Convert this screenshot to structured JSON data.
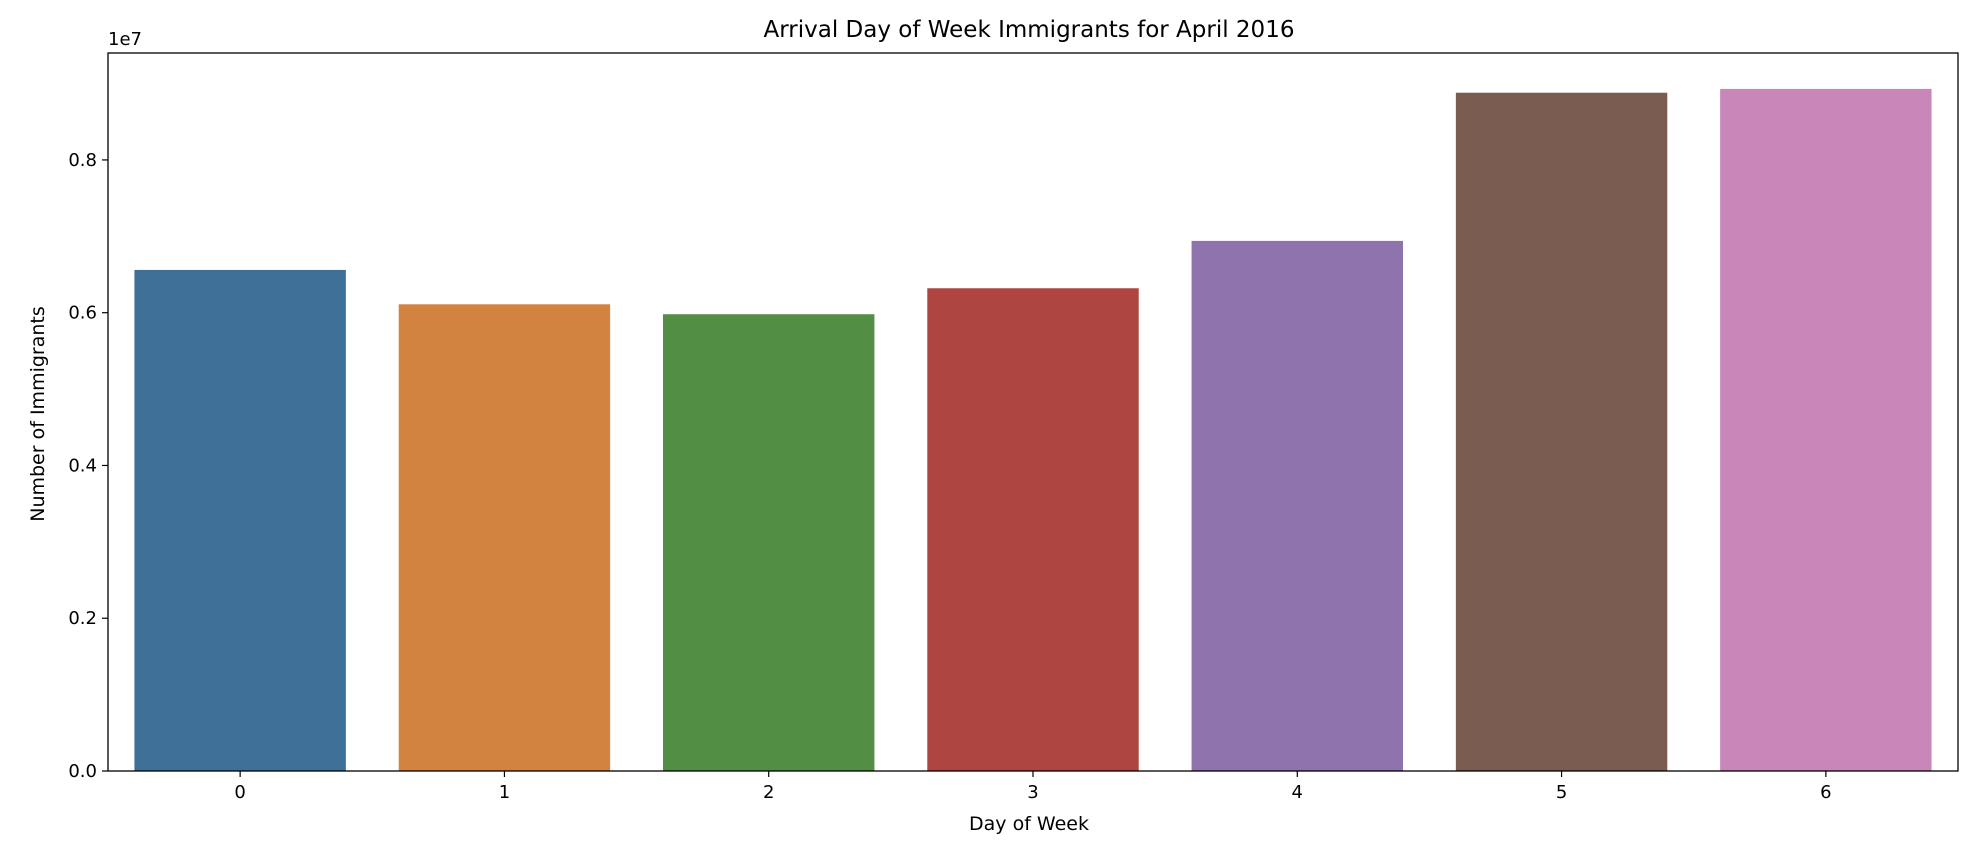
{
  "chart_data": {
    "type": "bar",
    "title": "Arrival Day of Week Immigrants for April 2016",
    "xlabel": "Day of Week",
    "ylabel": "Number of Immigrants",
    "y_offset_label": "1e7",
    "y_scale": 10000000,
    "categories": [
      "0",
      "1",
      "2",
      "3",
      "4",
      "5",
      "6"
    ],
    "values": [
      6560000,
      6110000,
      5980000,
      6320000,
      6940000,
      8880000,
      8930000
    ],
    "colors": [
      "#3f7098",
      "#d28340",
      "#528f44",
      "#ae4541",
      "#8e73ad",
      "#7a5c51",
      "#c986b9"
    ],
    "ylim": [
      0,
      9400000
    ],
    "yticks": [
      0,
      2000000,
      4000000,
      6000000,
      8000000
    ],
    "ytick_labels": [
      "0.0",
      "0.2",
      "0.4",
      "0.6",
      "0.8"
    ],
    "grid": false,
    "legend": "none"
  }
}
